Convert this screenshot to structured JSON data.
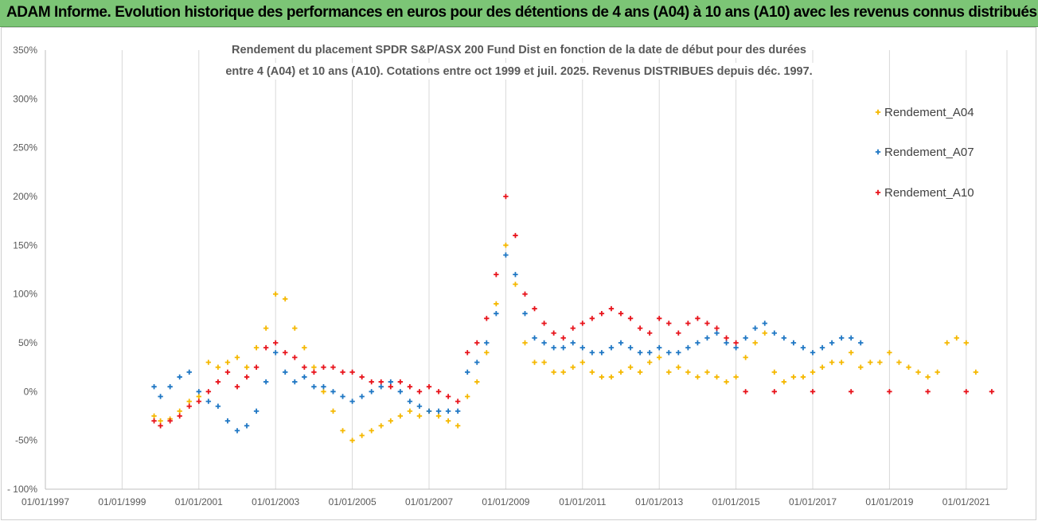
{
  "header": {
    "banner": "ADAM Informe. Evolution historique des performances en euros pour des détentions de 4 ans (A04) à 10 ans (A10) avec les revenus connus distribués"
  },
  "chart_data": {
    "type": "scatter",
    "title_lines": [
      "Rendement du placement SPDR S&P/ASX 200 Fund Dist en fonction de la date de début pour des durées",
      "entre 4 (A04) et 10 ans (A10).  Cotations entre oct 1999 et juil. 2025. Revenus DISTRIBUES depuis déc. 1997."
    ],
    "xlabel": "",
    "ylabel": "",
    "x_ticks": [
      "01/01/1997",
      "01/01/1999",
      "01/01/2001",
      "01/01/2003",
      "01/01/2005",
      "01/01/2007",
      "01/01/2009",
      "01/01/2011",
      "01/01/2013",
      "01/01/2015",
      "01/01/2017",
      "01/01/2019",
      "01/01/2021"
    ],
    "y_ticks": [
      "- 100%",
      "-50%",
      "0%",
      "50%",
      "100%",
      "150%",
      "200%",
      "250%",
      "300%",
      "350%"
    ],
    "xlim": [
      "1997-01-01",
      "2022-01-01"
    ],
    "ylim": [
      -100,
      350
    ],
    "grid": "vertical",
    "legend_position": "right",
    "marker": "+",
    "series": [
      {
        "name": "Rendement_A04",
        "color": "#f5b800",
        "points": [
          [
            "1999-11",
            -25
          ],
          [
            "2000-01",
            -30
          ],
          [
            "2000-04",
            -28
          ],
          [
            "2000-07",
            -20
          ],
          [
            "2000-10",
            -10
          ],
          [
            "2001-01",
            -5
          ],
          [
            "2001-04",
            30
          ],
          [
            "2001-07",
            25
          ],
          [
            "2001-10",
            30
          ],
          [
            "2002-01",
            35
          ],
          [
            "2002-04",
            25
          ],
          [
            "2002-07",
            45
          ],
          [
            "2002-10",
            65
          ],
          [
            "2003-01",
            100
          ],
          [
            "2003-04",
            95
          ],
          [
            "2003-07",
            65
          ],
          [
            "2003-10",
            45
          ],
          [
            "2004-01",
            25
          ],
          [
            "2004-04",
            0
          ],
          [
            "2004-07",
            -20
          ],
          [
            "2004-10",
            -40
          ],
          [
            "2005-01",
            -50
          ],
          [
            "2005-04",
            -45
          ],
          [
            "2005-07",
            -40
          ],
          [
            "2005-10",
            -35
          ],
          [
            "2006-01",
            -30
          ],
          [
            "2006-04",
            -25
          ],
          [
            "2006-07",
            -20
          ],
          [
            "2006-10",
            -25
          ],
          [
            "2007-01",
            -20
          ],
          [
            "2007-04",
            -25
          ],
          [
            "2007-07",
            -30
          ],
          [
            "2007-10",
            -35
          ],
          [
            "2008-01",
            -5
          ],
          [
            "2008-04",
            10
          ],
          [
            "2008-07",
            40
          ],
          [
            "2008-10",
            90
          ],
          [
            "2009-01",
            150
          ],
          [
            "2009-04",
            110
          ],
          [
            "2009-07",
            50
          ],
          [
            "2009-10",
            30
          ],
          [
            "2010-01",
            30
          ],
          [
            "2010-04",
            20
          ],
          [
            "2010-07",
            20
          ],
          [
            "2010-10",
            25
          ],
          [
            "2011-01",
            30
          ],
          [
            "2011-04",
            20
          ],
          [
            "2011-07",
            15
          ],
          [
            "2011-10",
            15
          ],
          [
            "2012-01",
            20
          ],
          [
            "2012-04",
            25
          ],
          [
            "2012-07",
            20
          ],
          [
            "2012-10",
            30
          ],
          [
            "2013-01",
            35
          ],
          [
            "2013-04",
            20
          ],
          [
            "2013-07",
            25
          ],
          [
            "2013-10",
            20
          ],
          [
            "2014-01",
            15
          ],
          [
            "2014-04",
            20
          ],
          [
            "2014-07",
            15
          ],
          [
            "2014-10",
            10
          ],
          [
            "2015-01",
            15
          ],
          [
            "2015-04",
            35
          ],
          [
            "2015-07",
            50
          ],
          [
            "2015-10",
            60
          ],
          [
            "2016-01",
            20
          ],
          [
            "2016-04",
            10
          ],
          [
            "2016-07",
            15
          ],
          [
            "2016-10",
            15
          ],
          [
            "2017-01",
            20
          ],
          [
            "2017-04",
            25
          ],
          [
            "2017-07",
            30
          ],
          [
            "2017-10",
            30
          ],
          [
            "2018-01",
            40
          ],
          [
            "2018-04",
            25
          ],
          [
            "2018-07",
            30
          ],
          [
            "2018-10",
            30
          ],
          [
            "2019-01",
            40
          ],
          [
            "2019-04",
            30
          ],
          [
            "2019-07",
            25
          ],
          [
            "2019-10",
            20
          ],
          [
            "2020-01",
            15
          ],
          [
            "2020-04",
            20
          ],
          [
            "2020-07",
            50
          ],
          [
            "2020-10",
            55
          ],
          [
            "2021-01",
            50
          ],
          [
            "2021-04",
            20
          ]
        ]
      },
      {
        "name": "Rendement_A07",
        "color": "#1f77c4",
        "points": [
          [
            "1999-11",
            5
          ],
          [
            "2000-01",
            -5
          ],
          [
            "2000-04",
            5
          ],
          [
            "2000-07",
            15
          ],
          [
            "2000-10",
            20
          ],
          [
            "2001-01",
            0
          ],
          [
            "2001-04",
            -10
          ],
          [
            "2001-07",
            -15
          ],
          [
            "2001-10",
            -30
          ],
          [
            "2002-01",
            -40
          ],
          [
            "2002-04",
            -35
          ],
          [
            "2002-07",
            -20
          ],
          [
            "2002-10",
            10
          ],
          [
            "2003-01",
            40
          ],
          [
            "2003-04",
            20
          ],
          [
            "2003-07",
            10
          ],
          [
            "2003-10",
            15
          ],
          [
            "2004-01",
            5
          ],
          [
            "2004-04",
            5
          ],
          [
            "2004-07",
            0
          ],
          [
            "2004-10",
            -5
          ],
          [
            "2005-01",
            -10
          ],
          [
            "2005-04",
            -5
          ],
          [
            "2005-07",
            0
          ],
          [
            "2005-10",
            5
          ],
          [
            "2006-01",
            10
          ],
          [
            "2006-04",
            0
          ],
          [
            "2006-07",
            -10
          ],
          [
            "2006-10",
            -15
          ],
          [
            "2007-01",
            -20
          ],
          [
            "2007-04",
            -20
          ],
          [
            "2007-07",
            -20
          ],
          [
            "2007-10",
            -20
          ],
          [
            "2008-01",
            20
          ],
          [
            "2008-04",
            30
          ],
          [
            "2008-07",
            50
          ],
          [
            "2008-10",
            80
          ],
          [
            "2009-01",
            140
          ],
          [
            "2009-04",
            120
          ],
          [
            "2009-07",
            80
          ],
          [
            "2009-10",
            55
          ],
          [
            "2010-01",
            50
          ],
          [
            "2010-04",
            45
          ],
          [
            "2010-07",
            45
          ],
          [
            "2010-10",
            50
          ],
          [
            "2011-01",
            45
          ],
          [
            "2011-04",
            40
          ],
          [
            "2011-07",
            40
          ],
          [
            "2011-10",
            45
          ],
          [
            "2012-01",
            50
          ],
          [
            "2012-04",
            45
          ],
          [
            "2012-07",
            40
          ],
          [
            "2012-10",
            40
          ],
          [
            "2013-01",
            45
          ],
          [
            "2013-04",
            40
          ],
          [
            "2013-07",
            40
          ],
          [
            "2013-10",
            45
          ],
          [
            "2014-01",
            50
          ],
          [
            "2014-04",
            55
          ],
          [
            "2014-07",
            60
          ],
          [
            "2014-10",
            50
          ],
          [
            "2015-01",
            45
          ],
          [
            "2015-04",
            55
          ],
          [
            "2015-07",
            65
          ],
          [
            "2015-10",
            70
          ],
          [
            "2016-01",
            60
          ],
          [
            "2016-04",
            55
          ],
          [
            "2016-07",
            50
          ],
          [
            "2016-10",
            45
          ],
          [
            "2017-01",
            40
          ],
          [
            "2017-04",
            45
          ],
          [
            "2017-07",
            50
          ],
          [
            "2017-10",
            55
          ],
          [
            "2018-01",
            55
          ],
          [
            "2018-04",
            50
          ]
        ]
      },
      {
        "name": "Rendement_A10",
        "color": "#e8141c",
        "points": [
          [
            "1999-11",
            -30
          ],
          [
            "2000-01",
            -35
          ],
          [
            "2000-04",
            -30
          ],
          [
            "2000-07",
            -25
          ],
          [
            "2000-10",
            -15
          ],
          [
            "2001-01",
            -10
          ],
          [
            "2001-04",
            0
          ],
          [
            "2001-07",
            10
          ],
          [
            "2001-10",
            20
          ],
          [
            "2002-01",
            5
          ],
          [
            "2002-04",
            15
          ],
          [
            "2002-07",
            25
          ],
          [
            "2002-10",
            45
          ],
          [
            "2003-01",
            50
          ],
          [
            "2003-04",
            40
          ],
          [
            "2003-07",
            35
          ],
          [
            "2003-10",
            25
          ],
          [
            "2004-01",
            20
          ],
          [
            "2004-04",
            25
          ],
          [
            "2004-07",
            25
          ],
          [
            "2004-10",
            20
          ],
          [
            "2005-01",
            20
          ],
          [
            "2005-04",
            15
          ],
          [
            "2005-07",
            10
          ],
          [
            "2005-10",
            10
          ],
          [
            "2006-01",
            5
          ],
          [
            "2006-04",
            10
          ],
          [
            "2006-07",
            5
          ],
          [
            "2006-10",
            0
          ],
          [
            "2007-01",
            5
          ],
          [
            "2007-04",
            0
          ],
          [
            "2007-07",
            -5
          ],
          [
            "2007-10",
            -10
          ],
          [
            "2008-01",
            40
          ],
          [
            "2008-04",
            50
          ],
          [
            "2008-07",
            75
          ],
          [
            "2008-10",
            120
          ],
          [
            "2009-01",
            200
          ],
          [
            "2009-04",
            160
          ],
          [
            "2009-07",
            100
          ],
          [
            "2009-10",
            85
          ],
          [
            "2010-01",
            70
          ],
          [
            "2010-04",
            60
          ],
          [
            "2010-07",
            55
          ],
          [
            "2010-10",
            65
          ],
          [
            "2011-01",
            70
          ],
          [
            "2011-04",
            75
          ],
          [
            "2011-07",
            80
          ],
          [
            "2011-10",
            85
          ],
          [
            "2012-01",
            80
          ],
          [
            "2012-04",
            75
          ],
          [
            "2012-07",
            65
          ],
          [
            "2012-10",
            60
          ],
          [
            "2013-01",
            75
          ],
          [
            "2013-04",
            70
          ],
          [
            "2013-07",
            60
          ],
          [
            "2013-10",
            70
          ],
          [
            "2014-01",
            75
          ],
          [
            "2014-04",
            70
          ],
          [
            "2014-07",
            65
          ],
          [
            "2014-10",
            55
          ],
          [
            "2015-01",
            50
          ],
          [
            "2015-04",
            0
          ],
          [
            "2016-01",
            0
          ],
          [
            "2017-01",
            0
          ],
          [
            "2018-01",
            0
          ],
          [
            "2019-01",
            0
          ],
          [
            "2020-01",
            0
          ],
          [
            "2021-01",
            0
          ],
          [
            "2021-09",
            0
          ]
        ]
      }
    ]
  }
}
